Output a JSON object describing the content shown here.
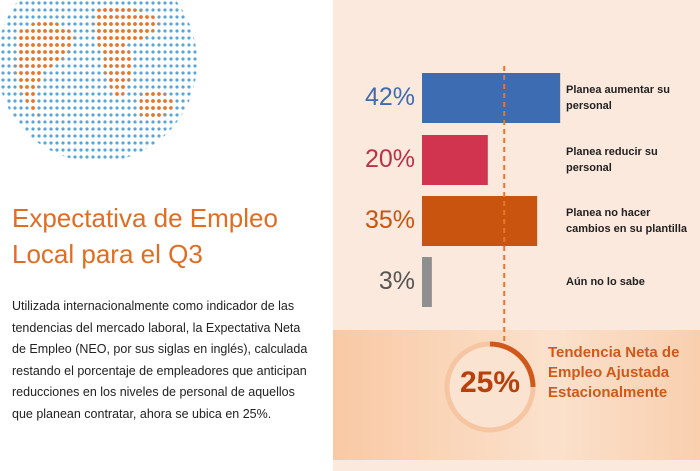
{
  "title": "Expectativa de Empleo Local para el Q3",
  "description": "Utilizada internacionalmente como indicador de las tendencias del mercado laboral, la Expectativa Neta de Empleo (NEO, por sus siglas en inglés), calculada restando el porcentaje de empleadores que anticipan reducciones en los niveles de personal de aquellos que planean contratar, ahora se ubica en 25%.",
  "chart_data": {
    "type": "bar",
    "categories": [
      "Planea aumentar su personal",
      "Planea reducir su personal",
      "Planea no hacer cambios en su plantilla",
      "Aún no lo sabe"
    ],
    "values": [
      42,
      20,
      35,
      3
    ],
    "value_labels": [
      "42%",
      "20%",
      "35%",
      "3%"
    ],
    "colors": [
      "#3e6cb2",
      "#d1344e",
      "#c9540f",
      "#8f8f8f"
    ],
    "label_colors": [
      "#3e6cb2",
      "#b8334a",
      "#c9540f",
      "#555555"
    ],
    "net_label": "Tendencia Neta de Empleo Ajustada Estacionalmente",
    "net_value": 25,
    "net_value_label": "25%"
  }
}
